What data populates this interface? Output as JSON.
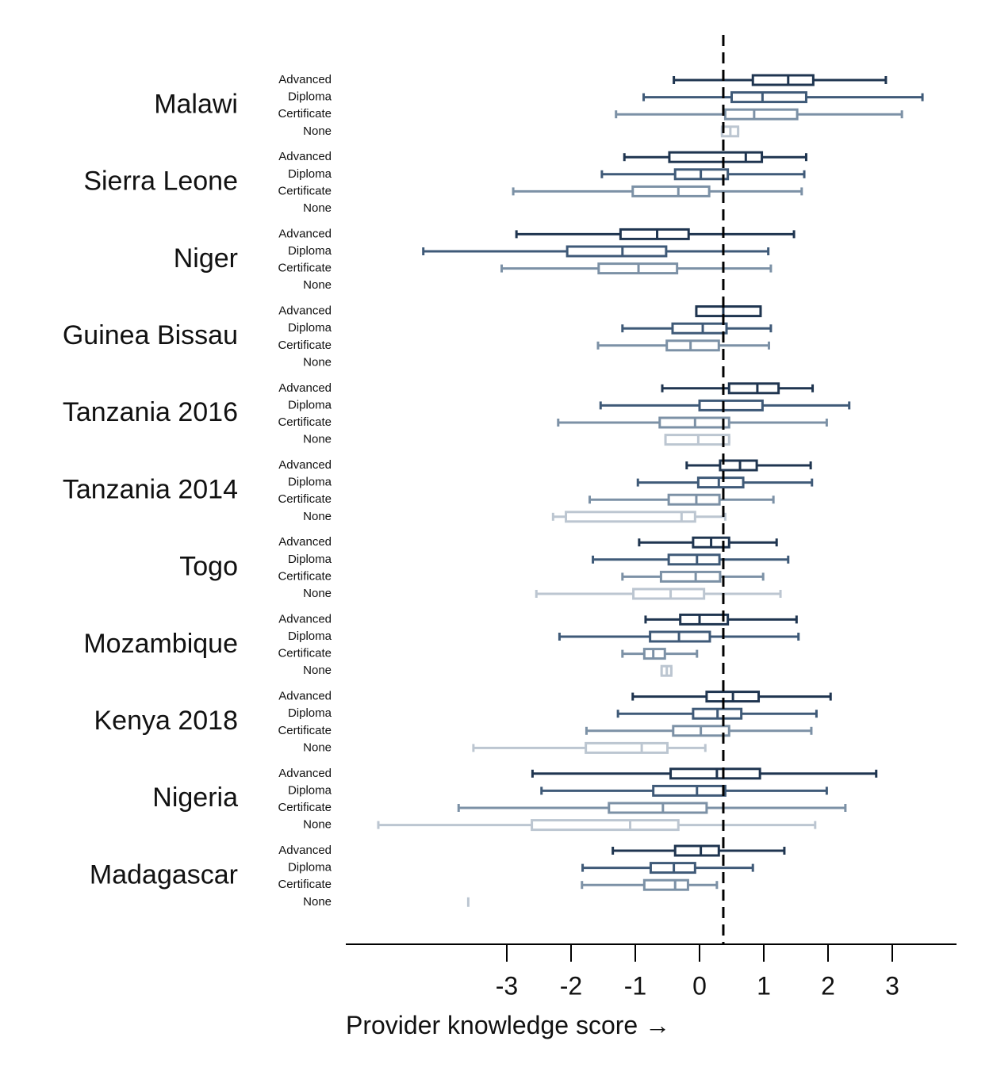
{
  "chart_data": {
    "type": "boxplot",
    "orientation": "horizontal",
    "xlabel": "Provider knowledge score →",
    "xlim": [
      -5.6,
      4.0
    ],
    "xticks": [
      -3,
      -2,
      -1,
      0,
      1,
      2,
      3
    ],
    "xtick_labels": [
      "-3",
      "-2",
      "-1",
      "0",
      "1",
      "2",
      "3"
    ],
    "reference_line": 0.37,
    "levels": [
      "Advanced",
      "Diploma",
      "Certificate",
      "None"
    ],
    "level_colors": {
      "Advanced": "#1f3550",
      "Diploma": "#3f5a78",
      "Certificate": "#7c91a6",
      "None": "#bcc6d1"
    },
    "groups": [
      {
        "country": "Malawi",
        "boxes": [
          {
            "level": "Advanced",
            "whisker_low": -0.4,
            "q1": 0.83,
            "median": 1.38,
            "q3": 1.77,
            "whisker_high": 2.9
          },
          {
            "level": "Diploma",
            "whisker_low": -0.87,
            "q1": 0.5,
            "median": 0.98,
            "q3": 1.66,
            "whisker_high": 3.47
          },
          {
            "level": "Certificate",
            "whisker_low": -1.3,
            "q1": 0.4,
            "median": 0.85,
            "q3": 1.52,
            "whisker_high": 3.15
          },
          {
            "level": "None",
            "whisker_low": 0.35,
            "q1": 0.35,
            "median": 0.48,
            "q3": 0.6,
            "whisker_high": 0.6
          }
        ]
      },
      {
        "country": "Sierra Leone",
        "boxes": [
          {
            "level": "Advanced",
            "whisker_low": -1.17,
            "q1": -0.47,
            "median": 0.72,
            "q3": 0.97,
            "whisker_high": 1.66
          },
          {
            "level": "Diploma",
            "whisker_low": -1.52,
            "q1": -0.38,
            "median": 0.02,
            "q3": 0.44,
            "whisker_high": 1.63
          },
          {
            "level": "Certificate",
            "whisker_low": -2.9,
            "q1": -1.04,
            "median": -0.33,
            "q3": 0.15,
            "whisker_high": 1.59
          }
        ]
      },
      {
        "country": "Niger",
        "boxes": [
          {
            "level": "Advanced",
            "whisker_low": -2.85,
            "q1": -1.23,
            "median": -0.66,
            "q3": -0.17,
            "whisker_high": 1.47
          },
          {
            "level": "Diploma",
            "whisker_low": -4.3,
            "q1": -2.06,
            "median": -1.2,
            "q3": -0.52,
            "whisker_high": 1.07
          },
          {
            "level": "Certificate",
            "whisker_low": -3.08,
            "q1": -1.57,
            "median": -0.95,
            "q3": -0.35,
            "whisker_high": 1.11
          }
        ]
      },
      {
        "country": "Guinea Bissau",
        "boxes": [
          {
            "level": "Advanced",
            "whisker_low": -0.05,
            "q1": -0.05,
            "median": 0.37,
            "q3": 0.95,
            "whisker_high": 0.95
          },
          {
            "level": "Diploma",
            "whisker_low": -1.2,
            "q1": -0.42,
            "median": 0.05,
            "q3": 0.42,
            "whisker_high": 1.11
          },
          {
            "level": "Certificate",
            "whisker_low": -1.58,
            "q1": -0.51,
            "median": -0.14,
            "q3": 0.3,
            "whisker_high": 1.08
          }
        ]
      },
      {
        "country": "Tanzania 2016",
        "boxes": [
          {
            "level": "Advanced",
            "whisker_low": -0.58,
            "q1": 0.46,
            "median": 0.9,
            "q3": 1.23,
            "whisker_high": 1.76
          },
          {
            "level": "Diploma",
            "whisker_low": -1.54,
            "q1": 0.0,
            "median": 0.37,
            "q3": 0.98,
            "whisker_high": 2.33
          },
          {
            "level": "Certificate",
            "whisker_low": -2.2,
            "q1": -0.62,
            "median": -0.07,
            "q3": 0.46,
            "whisker_high": 1.98
          },
          {
            "level": "None",
            "whisker_low": -0.53,
            "q1": -0.53,
            "median": -0.02,
            "q3": 0.46,
            "whisker_high": 0.46
          }
        ]
      },
      {
        "country": "Tanzania 2014",
        "boxes": [
          {
            "level": "Advanced",
            "whisker_low": -0.2,
            "q1": 0.32,
            "median": 0.63,
            "q3": 0.89,
            "whisker_high": 1.73
          },
          {
            "level": "Diploma",
            "whisker_low": -0.96,
            "q1": -0.02,
            "median": 0.3,
            "q3": 0.68,
            "whisker_high": 1.75
          },
          {
            "level": "Certificate",
            "whisker_low": -1.71,
            "q1": -0.48,
            "median": -0.05,
            "q3": 0.31,
            "whisker_high": 1.15
          },
          {
            "level": "None",
            "whisker_low": -2.28,
            "q1": -2.08,
            "median": -0.28,
            "q3": -0.07,
            "whisker_high": 0.4
          }
        ]
      },
      {
        "country": "Togo",
        "boxes": [
          {
            "level": "Advanced",
            "whisker_low": -0.94,
            "q1": -0.1,
            "median": 0.18,
            "q3": 0.46,
            "whisker_high": 1.2
          },
          {
            "level": "Diploma",
            "whisker_low": -1.66,
            "q1": -0.48,
            "median": -0.04,
            "q3": 0.31,
            "whisker_high": 1.38
          },
          {
            "level": "Certificate",
            "whisker_low": -1.2,
            "q1": -0.6,
            "median": -0.06,
            "q3": 0.32,
            "whisker_high": 0.99
          },
          {
            "level": "None",
            "whisker_low": -2.54,
            "q1": -1.03,
            "median": -0.45,
            "q3": 0.07,
            "whisker_high": 1.26
          }
        ]
      },
      {
        "country": "Mozambique",
        "boxes": [
          {
            "level": "Advanced",
            "whisker_low": -0.84,
            "q1": -0.3,
            "median": 0.0,
            "q3": 0.44,
            "whisker_high": 1.51
          },
          {
            "level": "Diploma",
            "whisker_low": -2.18,
            "q1": -0.77,
            "median": -0.32,
            "q3": 0.16,
            "whisker_high": 1.54
          },
          {
            "level": "Certificate",
            "whisker_low": -1.2,
            "q1": -0.86,
            "median": -0.72,
            "q3": -0.54,
            "whisker_high": -0.04
          },
          {
            "level": "None",
            "whisker_low": -0.59,
            "q1": -0.59,
            "median": -0.51,
            "q3": -0.44,
            "whisker_high": -0.44
          }
        ]
      },
      {
        "country": "Kenya 2018",
        "boxes": [
          {
            "level": "Advanced",
            "whisker_low": -1.04,
            "q1": 0.11,
            "median": 0.52,
            "q3": 0.92,
            "whisker_high": 2.04
          },
          {
            "level": "Diploma",
            "whisker_low": -1.27,
            "q1": -0.1,
            "median": 0.28,
            "q3": 0.65,
            "whisker_high": 1.82
          },
          {
            "level": "Certificate",
            "whisker_low": -1.76,
            "q1": -0.41,
            "median": 0.02,
            "q3": 0.46,
            "whisker_high": 1.74
          },
          {
            "level": "None",
            "whisker_low": -3.52,
            "q1": -1.77,
            "median": -0.9,
            "q3": -0.5,
            "whisker_high": 0.09
          }
        ]
      },
      {
        "country": "Nigeria",
        "boxes": [
          {
            "level": "Advanced",
            "whisker_low": -2.6,
            "q1": -0.45,
            "median": 0.27,
            "q3": 0.94,
            "whisker_high": 2.75
          },
          {
            "level": "Diploma",
            "whisker_low": -2.46,
            "q1": -0.72,
            "median": -0.04,
            "q3": 0.4,
            "whisker_high": 1.98
          },
          {
            "level": "Certificate",
            "whisker_low": -3.75,
            "q1": -1.41,
            "median": -0.57,
            "q3": 0.11,
            "whisker_high": 2.27
          },
          {
            "level": "None",
            "whisker_low": -5.0,
            "q1": -2.61,
            "median": -1.08,
            "q3": -0.33,
            "whisker_high": 1.8
          }
        ]
      },
      {
        "country": "Madagascar",
        "boxes": [
          {
            "level": "Advanced",
            "whisker_low": -1.35,
            "q1": -0.38,
            "median": 0.02,
            "q3": 0.3,
            "whisker_high": 1.32
          },
          {
            "level": "Diploma",
            "whisker_low": -1.82,
            "q1": -0.76,
            "median": -0.4,
            "q3": -0.07,
            "whisker_high": 0.83
          },
          {
            "level": "Certificate",
            "whisker_low": -1.83,
            "q1": -0.86,
            "median": -0.38,
            "q3": -0.18,
            "whisker_high": 0.27
          },
          {
            "level": "None",
            "whisker_low": -3.6,
            "q1": -3.6,
            "median": -3.6,
            "q3": -3.6,
            "whisker_high": -3.6
          }
        ]
      }
    ]
  }
}
